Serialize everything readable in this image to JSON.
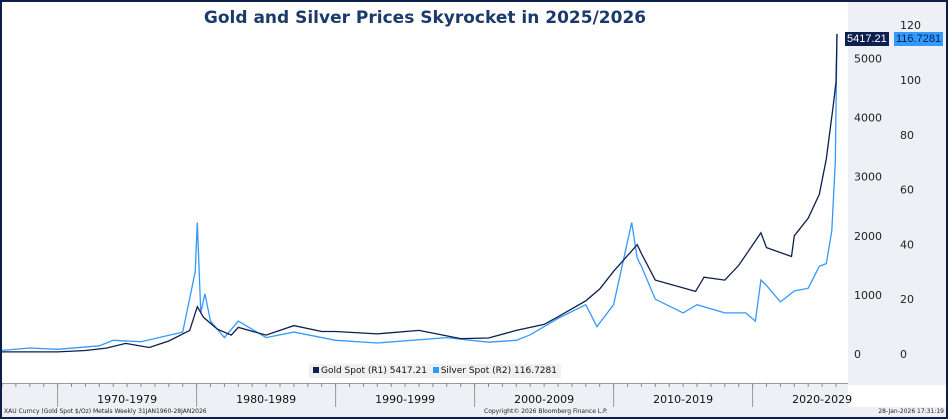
{
  "chart_data": {
    "type": "line",
    "title": "Gold and Silver Prices Skyrocket in 2025/2026",
    "x_tick_labels": [
      "1970-1979",
      "1980-1989",
      "1990-1999",
      "2000-2009",
      "2010-2019",
      "2020-2029"
    ],
    "y_axis_left_label_set": "R1",
    "y_right1": {
      "ticks": [
        0,
        1000,
        2000,
        3000,
        4000,
        5000
      ],
      "range": [
        0,
        5600
      ]
    },
    "y_right2": {
      "ticks": [
        0,
        20,
        40,
        60,
        80,
        100,
        120
      ],
      "range": [
        0,
        120
      ]
    },
    "grid": false,
    "legend_position": "bottom-center",
    "series": [
      {
        "name": "Gold Spot (R1)",
        "last": "5417.21",
        "color": "#0d1f4f",
        "axis": "R1",
        "x": [
          1966,
          1970,
          1972,
          1973.5,
          1974.9,
          1976.6,
          1978,
          1979.5,
          1980.05,
          1980.5,
          1981.5,
          1982.5,
          1983,
          1985,
          1987,
          1989,
          1990,
          1993,
          1996,
          1999,
          2001,
          2003,
          2005,
          2006,
          2008,
          2009,
          2010,
          2011.7,
          2012,
          2013,
          2015.9,
          2016.5,
          2018,
          2019,
          2020.6,
          2021,
          2022.8,
          2023,
          2024,
          2024.8,
          2025.3,
          2025.8,
          2026.0,
          2026.07
        ],
        "y": [
          35,
          36,
          60,
          100,
          180,
          110,
          220,
          400,
          800,
          620,
          420,
          320,
          450,
          320,
          480,
          380,
          380,
          340,
          400,
          260,
          270,
          400,
          500,
          630,
          900,
          1100,
          1400,
          1850,
          1700,
          1250,
          1060,
          1300,
          1250,
          1500,
          2050,
          1800,
          1650,
          2000,
          2300,
          2700,
          3300,
          4200,
          4600,
          5417.21
        ]
      },
      {
        "name": "Silver Spot (R2)",
        "last": "116.7281",
        "color": "#3399ff",
        "axis": "R2",
        "x": [
          1966,
          1968,
          1970,
          1973,
          1974,
          1976,
          1979,
          1979.9,
          1980.05,
          1980.3,
          1980.6,
          1981,
          1982,
          1983,
          1985,
          1987,
          1990,
          1993,
          1998,
          2001,
          2003,
          2004,
          2006,
          2008,
          2008.8,
          2010,
          2011.3,
          2011.7,
          2012,
          2013,
          2015,
          2016,
          2018,
          2019.5,
          2020.2,
          2020.6,
          2021,
          2022,
          2023,
          2024,
          2024.8,
          2025.3,
          2025.7,
          2025.95,
          2026.07
        ],
        "y": [
          1.3,
          2.2,
          1.7,
          3,
          5,
          4.5,
          8,
          30,
          48,
          15,
          22,
          12,
          6,
          12,
          6,
          8,
          5,
          4,
          6,
          4.3,
          5,
          7,
          13,
          18,
          10,
          18,
          48,
          35,
          32,
          20,
          15,
          18,
          15,
          15,
          12,
          27,
          25,
          19,
          23,
          24,
          32,
          33,
          45,
          70,
          116.7281
        ]
      }
    ]
  },
  "legend": {
    "gold": "Gold Spot (R1) 5417.21",
    "silver": "Silver Spot (R2) 116.7281"
  },
  "tags": {
    "gold": "5417.21",
    "silver": "116.7281"
  },
  "footer": {
    "left": "XAU Curncy (Gold Spot   $/Oz) Metals Weekly 31JAN1960-28JAN2026",
    "center": "Copyright© 2026 Bloomberg Finance L.P.",
    "right": "28-Jan-2026 17:31:19"
  }
}
